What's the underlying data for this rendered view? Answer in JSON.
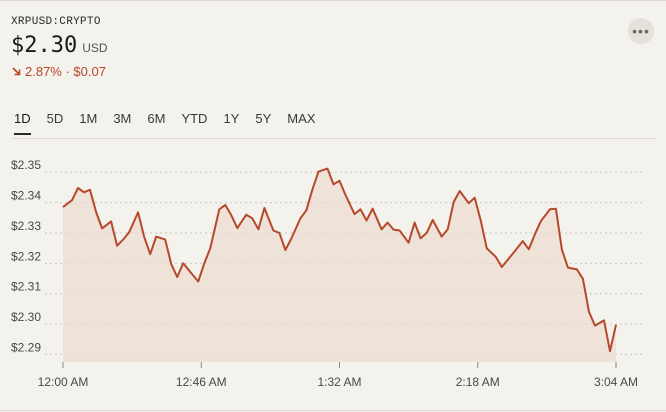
{
  "header": {
    "ticker": "XRPUSD:CRYPTO",
    "price": "$2.30",
    "currency": "USD",
    "change": "2.87% · $0.07",
    "more_label": "•••"
  },
  "tabs": [
    "1D",
    "5D",
    "1M",
    "3M",
    "6M",
    "YTD",
    "1Y",
    "5Y",
    "MAX"
  ],
  "active_tab": "1D",
  "colors": {
    "line": "#b6492b",
    "fill": "#ecdcd2",
    "down": "#b9462a",
    "grid": "#c9c7c1"
  },
  "chart_data": {
    "type": "area",
    "title": "",
    "xlabel": "",
    "ylabel": "",
    "ylim": [
      2.2875,
      2.356
    ],
    "y_ticks": [
      "$2.35",
      "$2.34",
      "$2.33",
      "$2.32",
      "$2.31",
      "$2.30",
      "$2.29"
    ],
    "x_ticks": [
      "12:00 AM",
      "12:46 AM",
      "1:32 AM",
      "2:18 AM",
      "3:04 AM"
    ],
    "series": [
      {
        "x_minutes": [
          0,
          3,
          5,
          7,
          9,
          11,
          13,
          16,
          18,
          20,
          22,
          25,
          27,
          29,
          31,
          34,
          36,
          38,
          40,
          42,
          45,
          47,
          49,
          52,
          54,
          56,
          58,
          61,
          63,
          65,
          67,
          70,
          72,
          74,
          76,
          79,
          81,
          83,
          85,
          88,
          90,
          92,
          94,
          97,
          99,
          101,
          103,
          106,
          108,
          110,
          112,
          115,
          117,
          119,
          121,
          123,
          126,
          128,
          130,
          132,
          135,
          137,
          139,
          141,
          144,
          146,
          148,
          150,
          153,
          155,
          157,
          159,
          162,
          164,
          166,
          168,
          171,
          173,
          175,
          177,
          180,
          182,
          184
        ],
        "values": [
          2.3385,
          2.3408,
          2.3448,
          2.3434,
          2.3442,
          2.3369,
          2.3315,
          2.3338,
          2.3258,
          2.3278,
          2.3302,
          2.3368,
          2.3288,
          2.323,
          2.3288,
          2.3278,
          2.3198,
          2.3155,
          2.32,
          2.3176,
          2.314,
          2.32,
          2.325,
          2.3378,
          2.3392,
          2.3358,
          2.3316,
          2.336,
          2.3348,
          2.3312,
          2.3382,
          2.3308,
          2.33,
          2.3244,
          2.3282,
          2.3348,
          2.3375,
          2.3444,
          2.3502,
          2.3512,
          2.346,
          2.3472,
          2.3425,
          2.3362,
          2.3378,
          2.3341,
          2.338,
          2.3312,
          2.3334,
          2.3311,
          2.3308,
          2.3268,
          2.3334,
          2.3282,
          2.33,
          2.3343,
          2.3288,
          2.3312,
          2.3402,
          2.3438,
          2.3398,
          2.3416,
          2.334,
          2.3249,
          2.3221,
          2.3188,
          2.3212,
          2.3236,
          2.3273,
          2.3246,
          2.3296,
          2.3339,
          2.3378,
          2.338,
          2.3245,
          2.3186,
          2.318,
          2.3149,
          2.304,
          2.2995,
          2.3012,
          2.2911,
          2.2998
        ]
      }
    ]
  }
}
